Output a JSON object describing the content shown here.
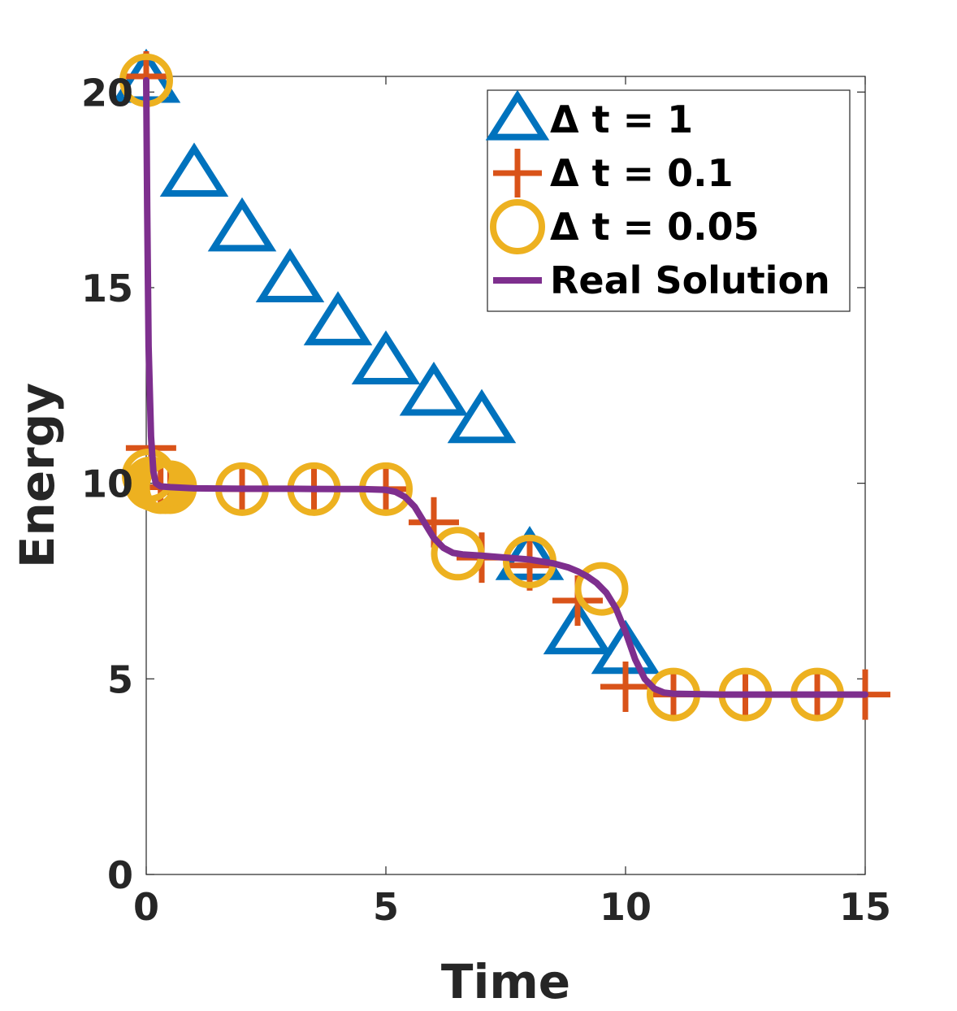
{
  "chart_data": {
    "type": "line",
    "title": "",
    "xlabel": "Time",
    "ylabel": "Energy",
    "xlim": [
      0,
      15
    ],
    "ylim": [
      0,
      20.4
    ],
    "xticks": [
      0,
      5,
      10,
      15
    ],
    "yticks": [
      0,
      5,
      10,
      15,
      20
    ],
    "xtick_labels": [
      "0",
      "5",
      "10",
      "15"
    ],
    "ytick_labels": [
      "0",
      "5",
      "10",
      "15",
      "20"
    ],
    "grid": false,
    "legend_position": "top-right",
    "series": [
      {
        "name": "Δ t = 1",
        "marker": "triangle",
        "color": "#0072BD",
        "x": [
          0,
          1,
          2,
          3,
          4,
          5,
          6,
          7,
          8,
          9,
          10
        ],
        "y": [
          20.3,
          17.9,
          16.5,
          15.2,
          14.1,
          13.1,
          12.3,
          11.6,
          8.1,
          6.2,
          5.7
        ]
      },
      {
        "name": "Δ t = 0.1",
        "marker": "plus",
        "color": "#D95319",
        "x": [
          0,
          0.1,
          0.3,
          0.5,
          2,
          3.5,
          5,
          6,
          7,
          8,
          9,
          10,
          11,
          12.5,
          14,
          15
        ],
        "y": [
          20.4,
          10.9,
          9.9,
          9.9,
          9.85,
          9.85,
          9.85,
          9.0,
          8.1,
          7.9,
          7.0,
          4.8,
          4.6,
          4.6,
          4.6,
          4.6
        ]
      },
      {
        "name": "Δ t = 0.05",
        "marker": "circle",
        "color": "#EDB120",
        "x": [
          0,
          0.05,
          0.1,
          0.2,
          0.3,
          0.4,
          0.5,
          2,
          3.5,
          5,
          6.5,
          8,
          9.5,
          11,
          12.5,
          14
        ],
        "y": [
          20.3,
          10.2,
          10.0,
          9.95,
          9.9,
          9.9,
          9.9,
          9.85,
          9.85,
          9.85,
          8.2,
          8.0,
          7.3,
          4.6,
          4.6,
          4.6
        ]
      },
      {
        "name": "Real Solution",
        "marker": "none",
        "color": "#7E2F8E",
        "x": [
          0,
          0.02,
          0.05,
          0.1,
          0.15,
          0.2,
          0.3,
          0.5,
          1,
          2,
          3,
          4,
          4.5,
          5,
          5.2,
          5.4,
          5.6,
          5.8,
          6,
          6.2,
          6.4,
          6.6,
          7,
          7.5,
          8,
          8.5,
          8.8,
          9,
          9.2,
          9.4,
          9.6,
          9.8,
          10,
          10.2,
          10.4,
          10.6,
          10.8,
          11,
          12,
          13,
          14,
          15
        ],
        "y": [
          20.3,
          17.0,
          13.5,
          11.2,
          10.3,
          10.0,
          9.92,
          9.9,
          9.87,
          9.86,
          9.86,
          9.85,
          9.85,
          9.83,
          9.78,
          9.65,
          9.4,
          9.0,
          8.6,
          8.35,
          8.22,
          8.18,
          8.15,
          8.1,
          8.05,
          7.95,
          7.85,
          7.75,
          7.62,
          7.45,
          7.2,
          6.8,
          6.2,
          5.5,
          5.0,
          4.75,
          4.65,
          4.62,
          4.6,
          4.6,
          4.6,
          4.6
        ]
      }
    ]
  }
}
